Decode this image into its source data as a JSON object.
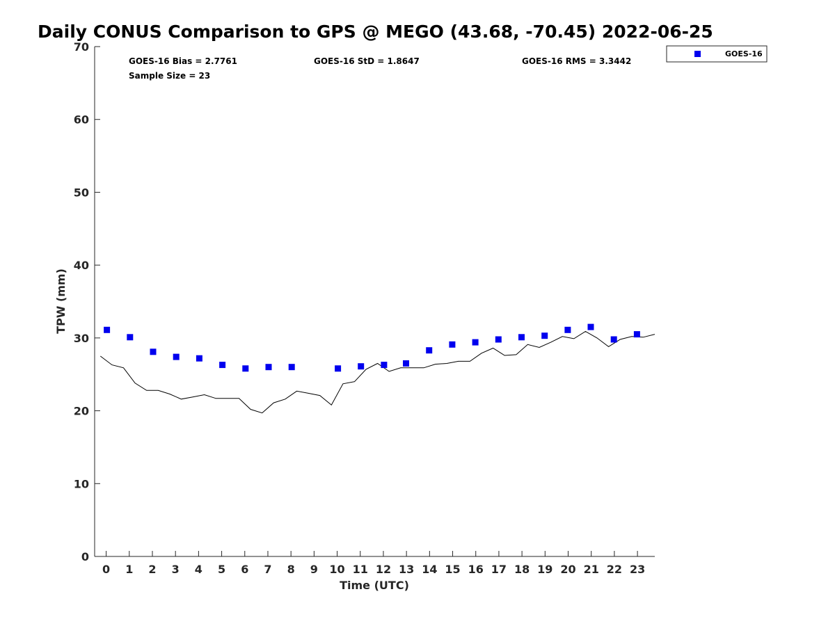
{
  "chart_data": {
    "type": "scatter",
    "title": "Daily CONUS Comparison to GPS @ MEGO (43.68, -70.45) 2022-06-25",
    "xlabel": "Time (UTC)",
    "ylabel": "TPW (mm)",
    "xlim": [
      -0.5,
      23.75
    ],
    "ylim": [
      0,
      70
    ],
    "xticks": [
      0,
      1,
      2,
      3,
      4,
      5,
      6,
      7,
      8,
      9,
      10,
      11,
      12,
      13,
      14,
      15,
      16,
      17,
      18,
      19,
      20,
      21,
      22,
      23
    ],
    "yticks": [
      0,
      10,
      20,
      30,
      40,
      50,
      60,
      70
    ],
    "grid": false,
    "legend_position": "outside-top-right",
    "stats": {
      "bias": "GOES-16 Bias = 2.7761",
      "std": "GOES-16 StD = 1.8647",
      "rms": "GOES-16 RMS = 3.3442",
      "sample": "Sample Size = 23"
    },
    "series": [
      {
        "name": "GOES-16",
        "kind": "scatter",
        "marker": "square",
        "color": "#0000ee",
        "x": [
          0.03,
          1.03,
          3.03,
          2.03,
          4.03,
          5.03,
          6.03,
          7.03,
          8.03,
          10.03,
          11.03,
          12.03,
          12.98,
          13.98,
          14.98,
          15.98,
          16.98,
          17.98,
          18.98,
          19.98,
          20.98,
          21.98,
          22.98
        ],
        "y": [
          31.1,
          30.1,
          27.4,
          28.1,
          27.2,
          26.3,
          25.8,
          26.0,
          26.0,
          25.8,
          26.1,
          26.3,
          26.5,
          28.3,
          29.1,
          29.4,
          29.8,
          30.1,
          30.3,
          31.1,
          31.5,
          29.8,
          30.5
        ]
      },
      {
        "kind": "line",
        "color": "#000000",
        "x": [
          -0.25,
          0.25,
          0.75,
          1.25,
          1.75,
          2.25,
          2.75,
          3.25,
          3.75,
          4.25,
          4.75,
          5.25,
          5.75,
          6.25,
          6.75,
          7.25,
          7.75,
          8.25,
          8.75,
          9.25,
          9.75,
          10.25,
          10.75,
          11.25,
          11.75,
          12.25,
          12.75,
          13.25,
          13.75,
          14.25,
          14.75,
          15.25,
          15.75,
          16.25,
          16.75,
          17.25,
          17.75,
          18.25,
          18.75,
          19.25,
          19.75,
          20.25,
          20.75,
          21.25,
          21.75,
          22.25,
          22.75,
          23.25,
          23.75
        ],
        "y": [
          27.5,
          26.3,
          25.9,
          23.8,
          22.8,
          22.8,
          22.3,
          21.6,
          21.9,
          22.2,
          21.7,
          21.7,
          21.7,
          20.2,
          19.7,
          21.1,
          21.6,
          22.7,
          22.4,
          22.1,
          20.8,
          23.7,
          24.0,
          25.7,
          26.5,
          25.4,
          25.9,
          25.9,
          25.9,
          26.4,
          26.5,
          26.8,
          26.8,
          27.9,
          28.6,
          27.6,
          27.7,
          29.1,
          28.7,
          29.4,
          30.2,
          29.9,
          30.9,
          30.0,
          28.8,
          29.8,
          30.2,
          30.1,
          30.5
        ]
      }
    ]
  }
}
